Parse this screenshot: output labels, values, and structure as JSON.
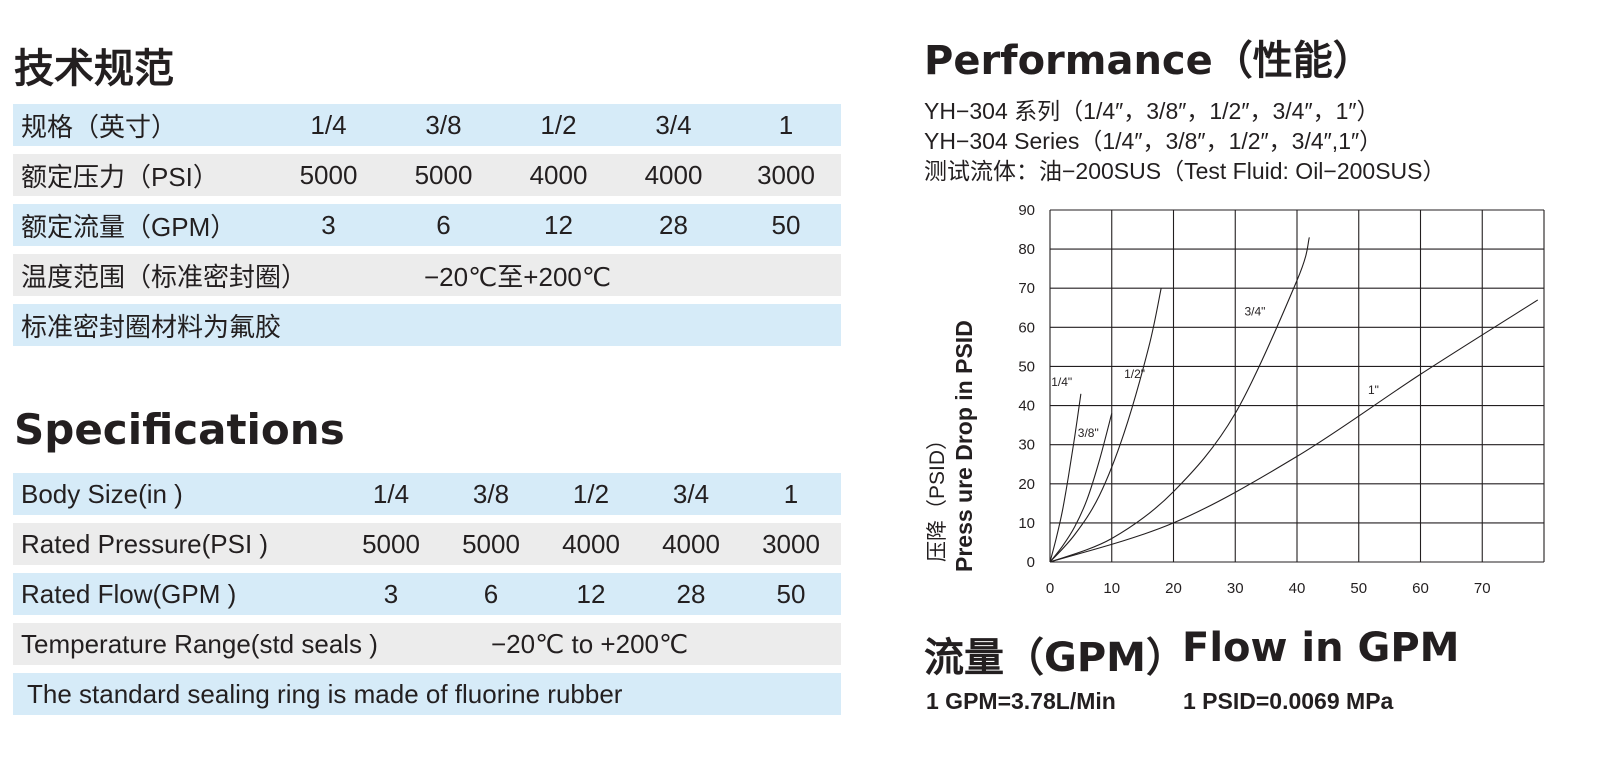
{
  "cn": {
    "title": "技术规范",
    "rows": [
      {
        "label": "规格（英寸）",
        "cells": [
          "1/4",
          "3/8",
          "1/2",
          "3/4",
          "1"
        ]
      },
      {
        "label": "额定压力（PSI）",
        "cells": [
          "5000",
          "5000",
          "4000",
          "4000",
          "3000"
        ]
      },
      {
        "label": "额定流量（GPM）",
        "cells": [
          "3",
          "6",
          "12",
          "28",
          "50"
        ]
      }
    ],
    "temp_label": "温度范围（标准密封圈）",
    "temp_value": "−20℃至+200℃",
    "note": "标准密封圈材料为氟胶"
  },
  "en": {
    "title": "Specifications",
    "rows": [
      {
        "label": "Body Size(in )",
        "cells": [
          "1/4",
          "3/8",
          "1/2",
          "3/4",
          "1"
        ]
      },
      {
        "label": "Rated Pressure(PSI )",
        "cells": [
          "5000",
          "5000",
          "4000",
          "4000",
          "3000"
        ]
      },
      {
        "label": "Rated Flow(GPM )",
        "cells": [
          "3",
          "6",
          "12",
          "28",
          "50"
        ]
      }
    ],
    "temp_label": "Temperature Range(std seals )",
    "temp_value": "−20℃ to +200℃",
    "note": "The standard sealing ring is made of fluorine rubber"
  },
  "performance": {
    "title": "Performance（性能）",
    "line1": "YH−304 系列（1/4″，3/8″，1/2″，3/4″，1″）",
    "line2": "YH−304 Series（1/4″，3/8″，1/2″，3/4″,1″）",
    "line3": "测试流体：油−200SUS（Test Fluid: Oil−200SUS）",
    "flow_cn": "流量（GPM）",
    "flow_en": "Flow in GPM",
    "conv1": "1 GPM=3.78L/Min",
    "conv2": "1 PSID=0.0069 MPa"
  },
  "chart_data": {
    "type": "line",
    "ylabel_cn": "压降（PSID）",
    "ylabel_en": "Press ure Drop in PSID",
    "xlim": [
      0,
      80
    ],
    "ylim": [
      0,
      90
    ],
    "x_ticks": [
      "0",
      "10",
      "20",
      "30",
      "40",
      "50",
      "60",
      "70"
    ],
    "y_ticks": [
      "0",
      "10",
      "20",
      "30",
      "40",
      "50",
      "60",
      "70",
      "80",
      "90"
    ],
    "grid": true,
    "series": [
      {
        "name": "1/4\"",
        "x": [
          0,
          1,
          2,
          3,
          4,
          5
        ],
        "y": [
          0,
          6,
          13,
          22,
          32,
          43
        ]
      },
      {
        "name": "3/8\"",
        "x": [
          0,
          2,
          4,
          6,
          8,
          10
        ],
        "y": [
          0,
          4,
          9,
          16,
          26,
          38
        ]
      },
      {
        "name": "1/2\"",
        "x": [
          0,
          4,
          8,
          12,
          16,
          18
        ],
        "y": [
          0,
          7,
          17,
          33,
          55,
          70
        ]
      },
      {
        "name": "3/4\"",
        "x": [
          0,
          10,
          20,
          30,
          40,
          42
        ],
        "y": [
          0,
          6,
          18,
          38,
          72,
          83
        ]
      },
      {
        "name": "1\"",
        "x": [
          0,
          20,
          40,
          60,
          79
        ],
        "y": [
          0,
          10,
          27,
          48,
          67
        ]
      }
    ]
  }
}
